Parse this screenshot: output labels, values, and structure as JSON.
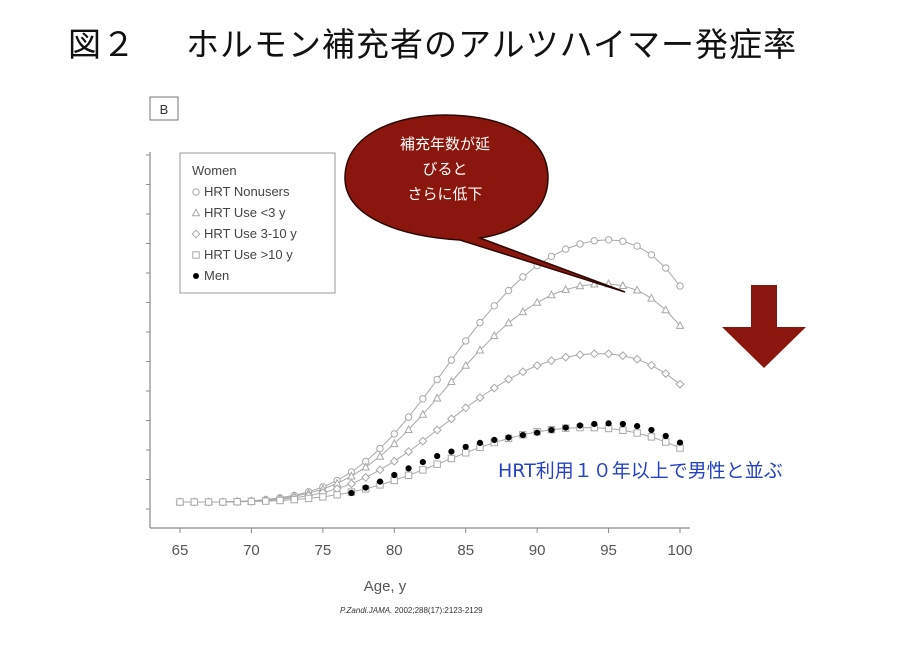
{
  "slide": {
    "title_number": "図２",
    "title_text": "ホルモン補充者のアルツハイマー発症率"
  },
  "bubble": {
    "lines": [
      "補充年数が延",
      "びると",
      "さらに低下"
    ]
  },
  "annotation": "HRT利用１０年以上で男性と並ぶ",
  "citation": {
    "journal": "P.Zandi.JAMA.",
    "details": " 2002;288(17):2123-2129"
  },
  "colors": {
    "bubble_fill": "#8b160d",
    "arrow_fill": "#8b160d",
    "annotation_text": "#2443c4",
    "series_gray": "#a8a8a8",
    "men_black": "#000000"
  },
  "chart_data": {
    "type": "line",
    "panel_label": "B",
    "xlabel": "Age, y",
    "ylabel": "",
    "xlim": [
      65,
      100
    ],
    "ylim": [
      0,
      1
    ],
    "x_ticks": [
      65,
      70,
      75,
      80,
      85,
      90,
      95,
      100
    ],
    "grid": false,
    "legend_position": "top-left",
    "legend_title": "Women",
    "x": [
      65,
      66,
      67,
      68,
      69,
      70,
      71,
      72,
      73,
      74,
      75,
      76,
      77,
      78,
      79,
      80,
      81,
      82,
      83,
      84,
      85,
      86,
      87,
      88,
      89,
      90,
      91,
      92,
      93,
      94,
      95,
      96,
      97,
      98,
      99,
      100
    ],
    "series": [
      {
        "name": "HRT Nonusers",
        "marker": "circle",
        "values": [
          0,
          0,
          0,
          0,
          0.002,
          0.004,
          0.008,
          0.014,
          0.022,
          0.034,
          0.05,
          0.072,
          0.1,
          0.135,
          0.178,
          0.227,
          0.283,
          0.344,
          0.408,
          0.473,
          0.537,
          0.598,
          0.654,
          0.705,
          0.75,
          0.788,
          0.819,
          0.843,
          0.86,
          0.871,
          0.874,
          0.869,
          0.853,
          0.824,
          0.78,
          0.72
        ]
      },
      {
        "name": "HRT Use <3 y",
        "marker": "triangle",
        "values": [
          0,
          0,
          0,
          0,
          0.002,
          0.003,
          0.007,
          0.012,
          0.019,
          0.029,
          0.043,
          0.062,
          0.086,
          0.116,
          0.152,
          0.194,
          0.241,
          0.292,
          0.346,
          0.401,
          0.455,
          0.506,
          0.554,
          0.597,
          0.634,
          0.665,
          0.69,
          0.708,
          0.72,
          0.726,
          0.727,
          0.721,
          0.706,
          0.679,
          0.64,
          0.588
        ]
      },
      {
        "name": "HRT Use 3-10 y",
        "marker": "diamond",
        "values": [
          0,
          0,
          0,
          0,
          0.001,
          0.002,
          0.005,
          0.009,
          0.014,
          0.021,
          0.031,
          0.044,
          0.061,
          0.082,
          0.107,
          0.136,
          0.168,
          0.203,
          0.24,
          0.277,
          0.314,
          0.348,
          0.38,
          0.409,
          0.434,
          0.455,
          0.471,
          0.483,
          0.491,
          0.494,
          0.494,
          0.488,
          0.476,
          0.456,
          0.428,
          0.393
        ]
      },
      {
        "name": "HRT Use >10 y",
        "marker": "square",
        "values": [
          0,
          0,
          0,
          0,
          0.001,
          0.002,
          0.003,
          0.005,
          0.008,
          0.012,
          0.017,
          0.024,
          0.033,
          0.044,
          0.057,
          0.072,
          0.089,
          0.107,
          0.126,
          0.145,
          0.164,
          0.182,
          0.198,
          0.212,
          0.224,
          0.234,
          0.241,
          0.246,
          0.248,
          0.248,
          0.245,
          0.239,
          0.23,
          0.217,
          0.2,
          0.18
        ]
      },
      {
        "name": "Men",
        "marker": "filled-circle",
        "values": [
          null,
          null,
          null,
          null,
          null,
          null,
          null,
          null,
          null,
          null,
          null,
          null,
          0.03,
          0.048,
          0.068,
          0.09,
          0.112,
          0.133,
          0.153,
          0.168,
          0.184,
          0.197,
          0.207,
          0.215,
          0.223,
          0.231,
          0.24,
          0.248,
          0.255,
          0.26,
          0.262,
          0.26,
          0.253,
          0.24,
          0.22,
          0.198
        ]
      }
    ]
  }
}
